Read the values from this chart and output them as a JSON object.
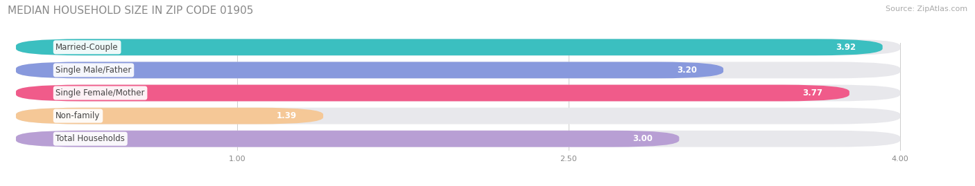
{
  "title": "MEDIAN HOUSEHOLD SIZE IN ZIP CODE 01905",
  "source": "Source: ZipAtlas.com",
  "categories": [
    "Married-Couple",
    "Single Male/Father",
    "Single Female/Mother",
    "Non-family",
    "Total Households"
  ],
  "values": [
    3.92,
    3.2,
    3.77,
    1.39,
    3.0
  ],
  "bar_colors": [
    "#3bbfc0",
    "#8899dd",
    "#f05b8a",
    "#f5c897",
    "#b89fd4"
  ],
  "xlim": [
    0,
    4.2
  ],
  "xmin": 0,
  "xmax": 4.0,
  "xticks": [
    1.0,
    2.5,
    4.0
  ],
  "background_color": "#ffffff",
  "bar_bg_color": "#e8e8ec",
  "title_fontsize": 11,
  "source_fontsize": 8,
  "label_fontsize": 8.5,
  "value_fontsize": 8.5
}
